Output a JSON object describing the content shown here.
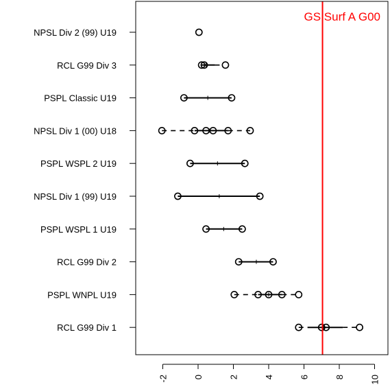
{
  "chart_data": {
    "type": "dot-range",
    "title": "",
    "xlabel": "",
    "ylabel": "",
    "xlim": [
      -3.5,
      11
    ],
    "x_ticks": [
      -2,
      0,
      2,
      4,
      6,
      8,
      10
    ],
    "x_tick_labels": [
      "-2",
      "0",
      "2",
      "4",
      "6",
      "8",
      "10"
    ],
    "categories": [
      "NPSL Div 2 (99) U19",
      "RCL G99 Div 3",
      "PSPL Classic U19",
      "NPSL Div 1 (00) U18",
      "PSPL WSPL 2 U19",
      "NPSL Div 1 (99) U19",
      "PSPL WSPL 1 U19",
      "RCL G99 Div 2",
      "PSPL WNPL U19",
      "RCL G99 Div 1"
    ],
    "rows": [
      {
        "points": [
          0.05
        ],
        "range": [
          0.05,
          0.05
        ],
        "median": 0.05,
        "dashed": []
      },
      {
        "points": [
          0.2,
          0.35,
          1.55
        ],
        "range": [
          0.2,
          0.95
        ],
        "median": 0.45,
        "dashed": [
          [
            0.95,
            1.4
          ]
        ]
      },
      {
        "points": [
          -0.8,
          1.9
        ],
        "range": [
          -0.8,
          1.9
        ],
        "median": 0.55,
        "dashed": []
      },
      {
        "points": [
          -2.05,
          -0.2,
          0.45,
          0.85,
          1.7,
          2.95
        ],
        "range": [
          -0.2,
          1.7
        ],
        "median": 0.65,
        "dashed": [
          [
            -2.05,
            -0.2
          ],
          [
            1.7,
            2.95
          ]
        ]
      },
      {
        "points": [
          -0.45,
          2.65
        ],
        "range": [
          -0.45,
          2.65
        ],
        "median": 1.1,
        "dashed": []
      },
      {
        "points": [
          -1.15,
          3.5
        ],
        "range": [
          -1.15,
          3.5
        ],
        "median": 1.2,
        "dashed": []
      },
      {
        "points": [
          0.45,
          2.5
        ],
        "range": [
          0.45,
          2.5
        ],
        "median": 1.45,
        "dashed": []
      },
      {
        "points": [
          2.3,
          4.25
        ],
        "range": [
          2.3,
          4.25
        ],
        "median": 3.3,
        "dashed": []
      },
      {
        "points": [
          2.05,
          3.4,
          4.0,
          4.75,
          5.7
        ],
        "range": [
          3.4,
          4.75
        ],
        "median": 4.0,
        "dashed": [
          [
            2.05,
            3.4
          ],
          [
            4.75,
            5.7
          ]
        ]
      },
      {
        "points": [
          5.7,
          7.0,
          7.25,
          9.15
        ],
        "range": [
          6.2,
          8.2
        ],
        "median": 7.1,
        "dashed": [
          [
            5.7,
            6.2
          ],
          [
            8.2,
            9.15
          ]
        ]
      }
    ],
    "reference_line": {
      "x": 7.05,
      "label": "GS Surf A G00",
      "color": "#ff0000"
    },
    "grid": false,
    "legend": "none"
  }
}
